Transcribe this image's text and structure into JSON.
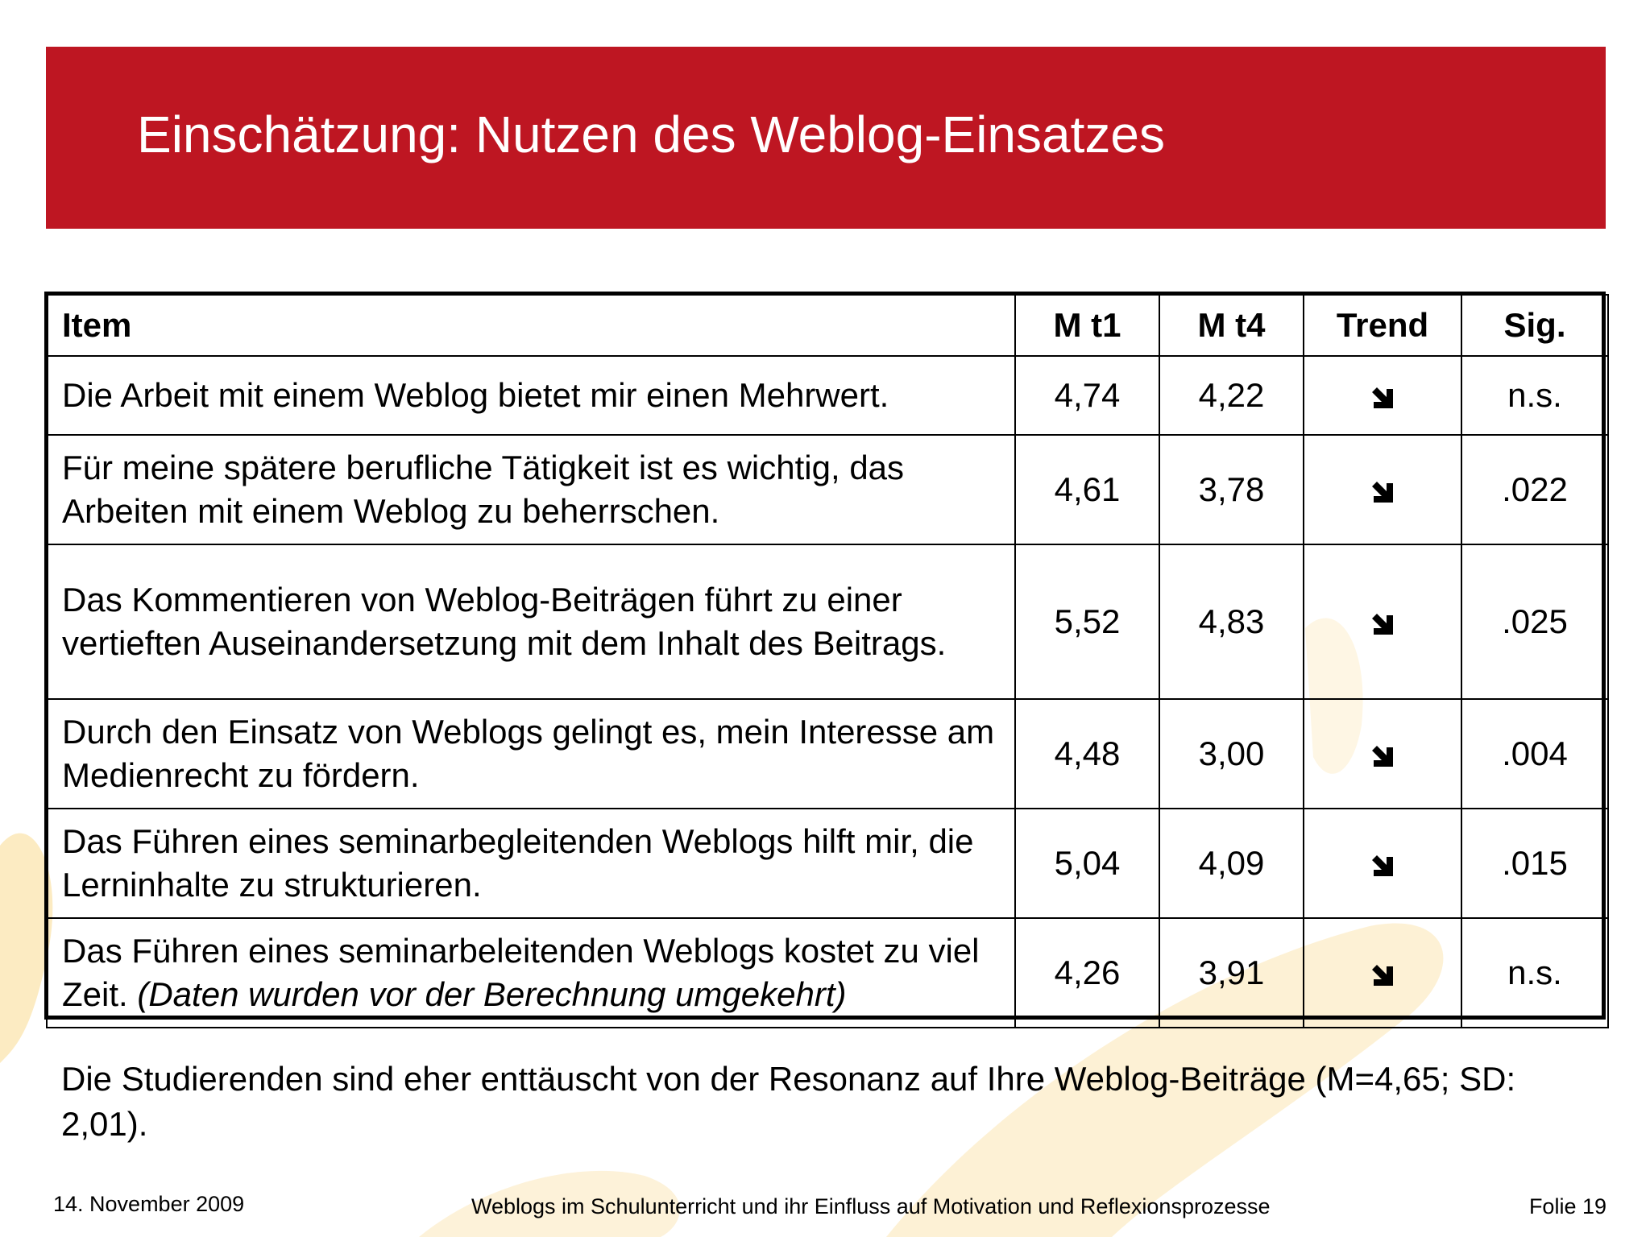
{
  "title": "Einschätzung: Nutzen des Weblog-Einsatzes",
  "table": {
    "headers": {
      "item": "Item",
      "mt1": "M t1",
      "mt4": "M t4",
      "trend": "Trend",
      "sig": "Sig."
    },
    "rows": [
      {
        "item": "Die Arbeit mit einem Weblog bietet mir einen Mehrwert.",
        "item_note": "",
        "mt1": "4,74",
        "mt4": "4,22",
        "trend": "arrow-down-right",
        "sig": "n.s."
      },
      {
        "item": "Für meine spätere berufliche Tätigkeit ist es wichtig, das Arbeiten mit einem Weblog zu beherrschen.",
        "item_note": "",
        "mt1": "4,61",
        "mt4": "3,78",
        "trend": "arrow-down-right",
        "sig": ".022"
      },
      {
        "item": "Das Kommentieren von Weblog-Beiträgen führt zu einer vertieften Auseinandersetzung mit dem Inhalt des Beitrags.",
        "item_note": "",
        "mt1": "5,52",
        "mt4": "4,83",
        "trend": "arrow-down-right",
        "sig": ".025"
      },
      {
        "item": "Durch den Einsatz von Weblogs gelingt es, mein Interesse am Medienrecht zu fördern.",
        "item_note": "",
        "mt1": "4,48",
        "mt4": "3,00",
        "trend": "arrow-down-right",
        "sig": ".004"
      },
      {
        "item": "Das Führen eines seminarbegleitenden Weblogs hilft mir, die Lerninhalte zu strukturieren.",
        "item_note": "",
        "mt1": "5,04",
        "mt4": "4,09",
        "trend": "arrow-down-right",
        "sig": ".015"
      },
      {
        "item": "Das Führen eines seminarbeleitenden Weblogs kostet zu viel Zeit. ",
        "item_note": "(Daten wurden vor der Berechnung umgekehrt)",
        "mt1": "4,26",
        "mt4": "3,91",
        "trend": "arrow-down-right",
        "sig": "n.s."
      }
    ]
  },
  "summary": "Die Studierenden sind eher enttäuscht von der Resonanz auf Ihre Weblog-Beiträge (M=4,65; SD: 2,01).",
  "footer": {
    "date": "14. November 2009",
    "presentation_title": "Weblogs im Schulunterricht und ihr Einfluss auf Motivation und Reflexionsprozesse",
    "slide_number": "Folie 19"
  },
  "colors": {
    "title_bar": "#be1622",
    "title_text": "#ffffff",
    "swoosh": "#fbe6b3"
  }
}
